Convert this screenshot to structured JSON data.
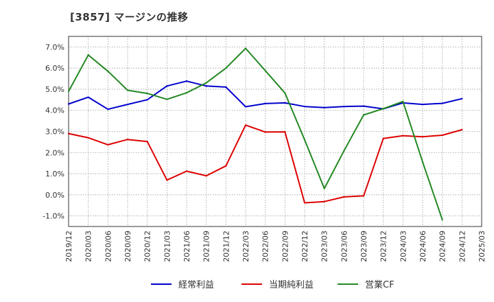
{
  "header": {
    "title": "[3857]  マージンの推移"
  },
  "chart_data": {
    "type": "line",
    "x": [
      "2019/12",
      "2020/03",
      "2020/06",
      "2020/09",
      "2020/12",
      "2021/03",
      "2021/06",
      "2021/09",
      "2021/12",
      "2022/03",
      "2022/06",
      "2022/09",
      "2022/12",
      "2023/03",
      "2023/06",
      "2023/09",
      "2023/12",
      "2024/03",
      "2024/06",
      "2024/09",
      "2024/12",
      "2025/03"
    ],
    "y_ticks": [
      "7.0%",
      "6.0%",
      "5.0%",
      "4.0%",
      "3.0%",
      "2.0%",
      "1.0%",
      "0.0%",
      "-1.0%"
    ],
    "y_tick_values": [
      7,
      6,
      5,
      4,
      3,
      2,
      1,
      0,
      -1
    ],
    "ylim": [
      -1.5,
      7.5
    ],
    "grid": true,
    "legend_position": "bottom",
    "series": [
      {
        "name": "経常利益",
        "color": "#0000cc",
        "values": [
          4.3,
          4.62,
          4.05,
          4.28,
          4.5,
          5.15,
          5.38,
          5.15,
          5.1,
          4.17,
          4.32,
          4.35,
          4.18,
          4.13,
          4.18,
          4.2,
          4.07,
          4.35,
          4.28,
          4.33,
          4.55,
          null
        ]
      },
      {
        "name": "当期純利益",
        "color": "#dd0000",
        "values": [
          2.9,
          2.7,
          2.37,
          2.62,
          2.52,
          0.7,
          1.12,
          0.9,
          1.37,
          3.3,
          2.97,
          2.98,
          -0.38,
          -0.32,
          -0.1,
          -0.05,
          2.67,
          2.8,
          2.75,
          2.82,
          3.08,
          null
        ]
      },
      {
        "name": "営業CF",
        "color": "#228822",
        "values": [
          4.9,
          6.62,
          5.85,
          4.95,
          4.8,
          4.52,
          4.83,
          5.3,
          6.0,
          6.93,
          5.88,
          4.82,
          2.6,
          0.3,
          2.08,
          3.78,
          4.08,
          4.42,
          1.55,
          -1.18,
          null,
          null
        ]
      }
    ]
  }
}
